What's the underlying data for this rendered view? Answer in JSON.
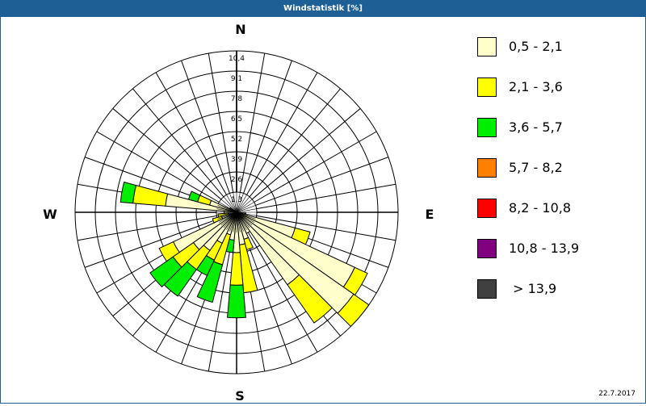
{
  "window": {
    "title": "Windstatistik [%]"
  },
  "footer": {
    "date": "22.7.2017"
  },
  "compass": {
    "n": "N",
    "e": "E",
    "s": "S",
    "w": "W"
  },
  "legend": [
    {
      "label": "0,5 - 2,1",
      "color": "#ffffcc"
    },
    {
      "label": "2,1 - 3,6",
      "color": "#ffff00"
    },
    {
      "label": "3,6 - 5,7",
      "color": "#00ee00"
    },
    {
      "label": "5,7 - 8,2",
      "color": "#ff8000"
    },
    {
      "label": "8,2 - 10,8",
      "color": "#ff0000"
    },
    {
      "label": "10,8 - 13,9",
      "color": "#800080"
    },
    {
      "label": " > 13,9",
      "color": "#404040"
    }
  ],
  "chart_data": {
    "type": "polar-stacked-bar (wind rose)",
    "title": "Windstatistik [%]",
    "unit": "%",
    "radial_ticks": [
      "1,3",
      "2,6",
      "3,9",
      "5,2",
      "6,5",
      "7,8",
      "9,1",
      "10,4"
    ],
    "radial_max": 10.4,
    "sector_width_deg": 10,
    "series_names": [
      "0,5 - 2,1",
      "2,1 - 3,6",
      "3,6 - 5,7",
      "5,7 - 8,2",
      "8,2 - 10,8",
      "10,8 - 13,9",
      "> 13,9"
    ],
    "note": "cumulative percent per direction bucket (bearing deg clockwise from N): [cream, yellow, green]",
    "sectors": [
      {
        "bearing": 100,
        "cumulative": [
          0.6,
          0.6,
          0.6
        ]
      },
      {
        "bearing": 110,
        "cumulative": [
          3.9,
          4.9,
          4.9
        ]
      },
      {
        "bearing": 120,
        "cumulative": [
          8.4,
          9.3,
          9.3
        ]
      },
      {
        "bearing": 130,
        "cumulative": [
          9.2,
          10.4,
          10.4
        ]
      },
      {
        "bearing": 140,
        "cumulative": [
          5.7,
          8.7,
          8.7
        ]
      },
      {
        "bearing": 150,
        "cumulative": [
          1.5,
          1.5,
          1.5
        ]
      },
      {
        "bearing": 160,
        "cumulative": [
          1.8,
          2.5,
          2.5
        ]
      },
      {
        "bearing": 170,
        "cumulative": [
          2.1,
          5.2,
          5.2
        ]
      },
      {
        "bearing": 180,
        "cumulative": [
          2.6,
          4.7,
          6.8
        ]
      },
      {
        "bearing": 190,
        "cumulative": [
          1.8,
          1.8,
          2.6
        ]
      },
      {
        "bearing": 200,
        "cumulative": [
          1.5,
          3.5,
          6.0
        ]
      },
      {
        "bearing": 210,
        "cumulative": [
          2.2,
          3.4,
          4.5
        ]
      },
      {
        "bearing": 220,
        "cumulative": [
          3.0,
          4.5,
          6.6
        ]
      },
      {
        "bearing": 230,
        "cumulative": [
          3.4,
          5.0,
          6.8
        ]
      },
      {
        "bearing": 240,
        "cumulative": [
          4.5,
          5.5,
          5.5
        ]
      },
      {
        "bearing": 250,
        "cumulative": [
          1.0,
          1.6,
          1.6
        ]
      },
      {
        "bearing": 260,
        "cumulative": [
          0.5,
          1.2,
          1.2
        ]
      },
      {
        "bearing": 270,
        "cumulative": [
          0.8,
          0.8,
          0.8
        ]
      },
      {
        "bearing": 280,
        "cumulative": [
          4.6,
          6.7,
          7.5
        ]
      },
      {
        "bearing": 290,
        "cumulative": [
          1.8,
          2.6,
          3.2
        ]
      },
      {
        "bearing": 300,
        "cumulative": [
          0.5,
          0.5,
          0.5
        ]
      }
    ]
  }
}
